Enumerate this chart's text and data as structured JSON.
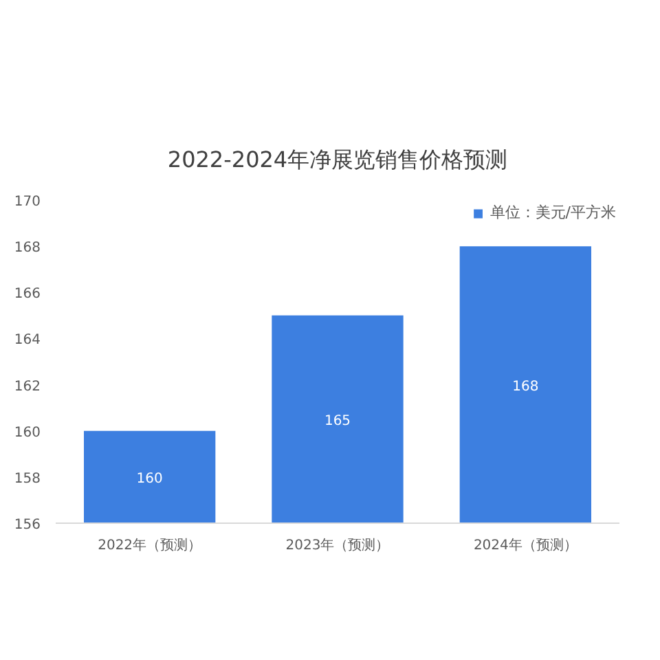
{
  "chart_data": {
    "type": "bar",
    "title": "2022-2024年净展览销售价格预测",
    "categories": [
      "2022年（预测）",
      "2023年（预测）",
      "2024年（预测）"
    ],
    "series": [
      {
        "name": "单位：美元/平方米",
        "color": "#3d7fe0",
        "values": [
          160,
          165,
          168
        ]
      }
    ],
    "ylim": [
      156,
      170
    ],
    "yticks": [
      156,
      158,
      160,
      162,
      164,
      166,
      168,
      170
    ],
    "data_labels": true,
    "legend": "top right",
    "grid": false
  }
}
